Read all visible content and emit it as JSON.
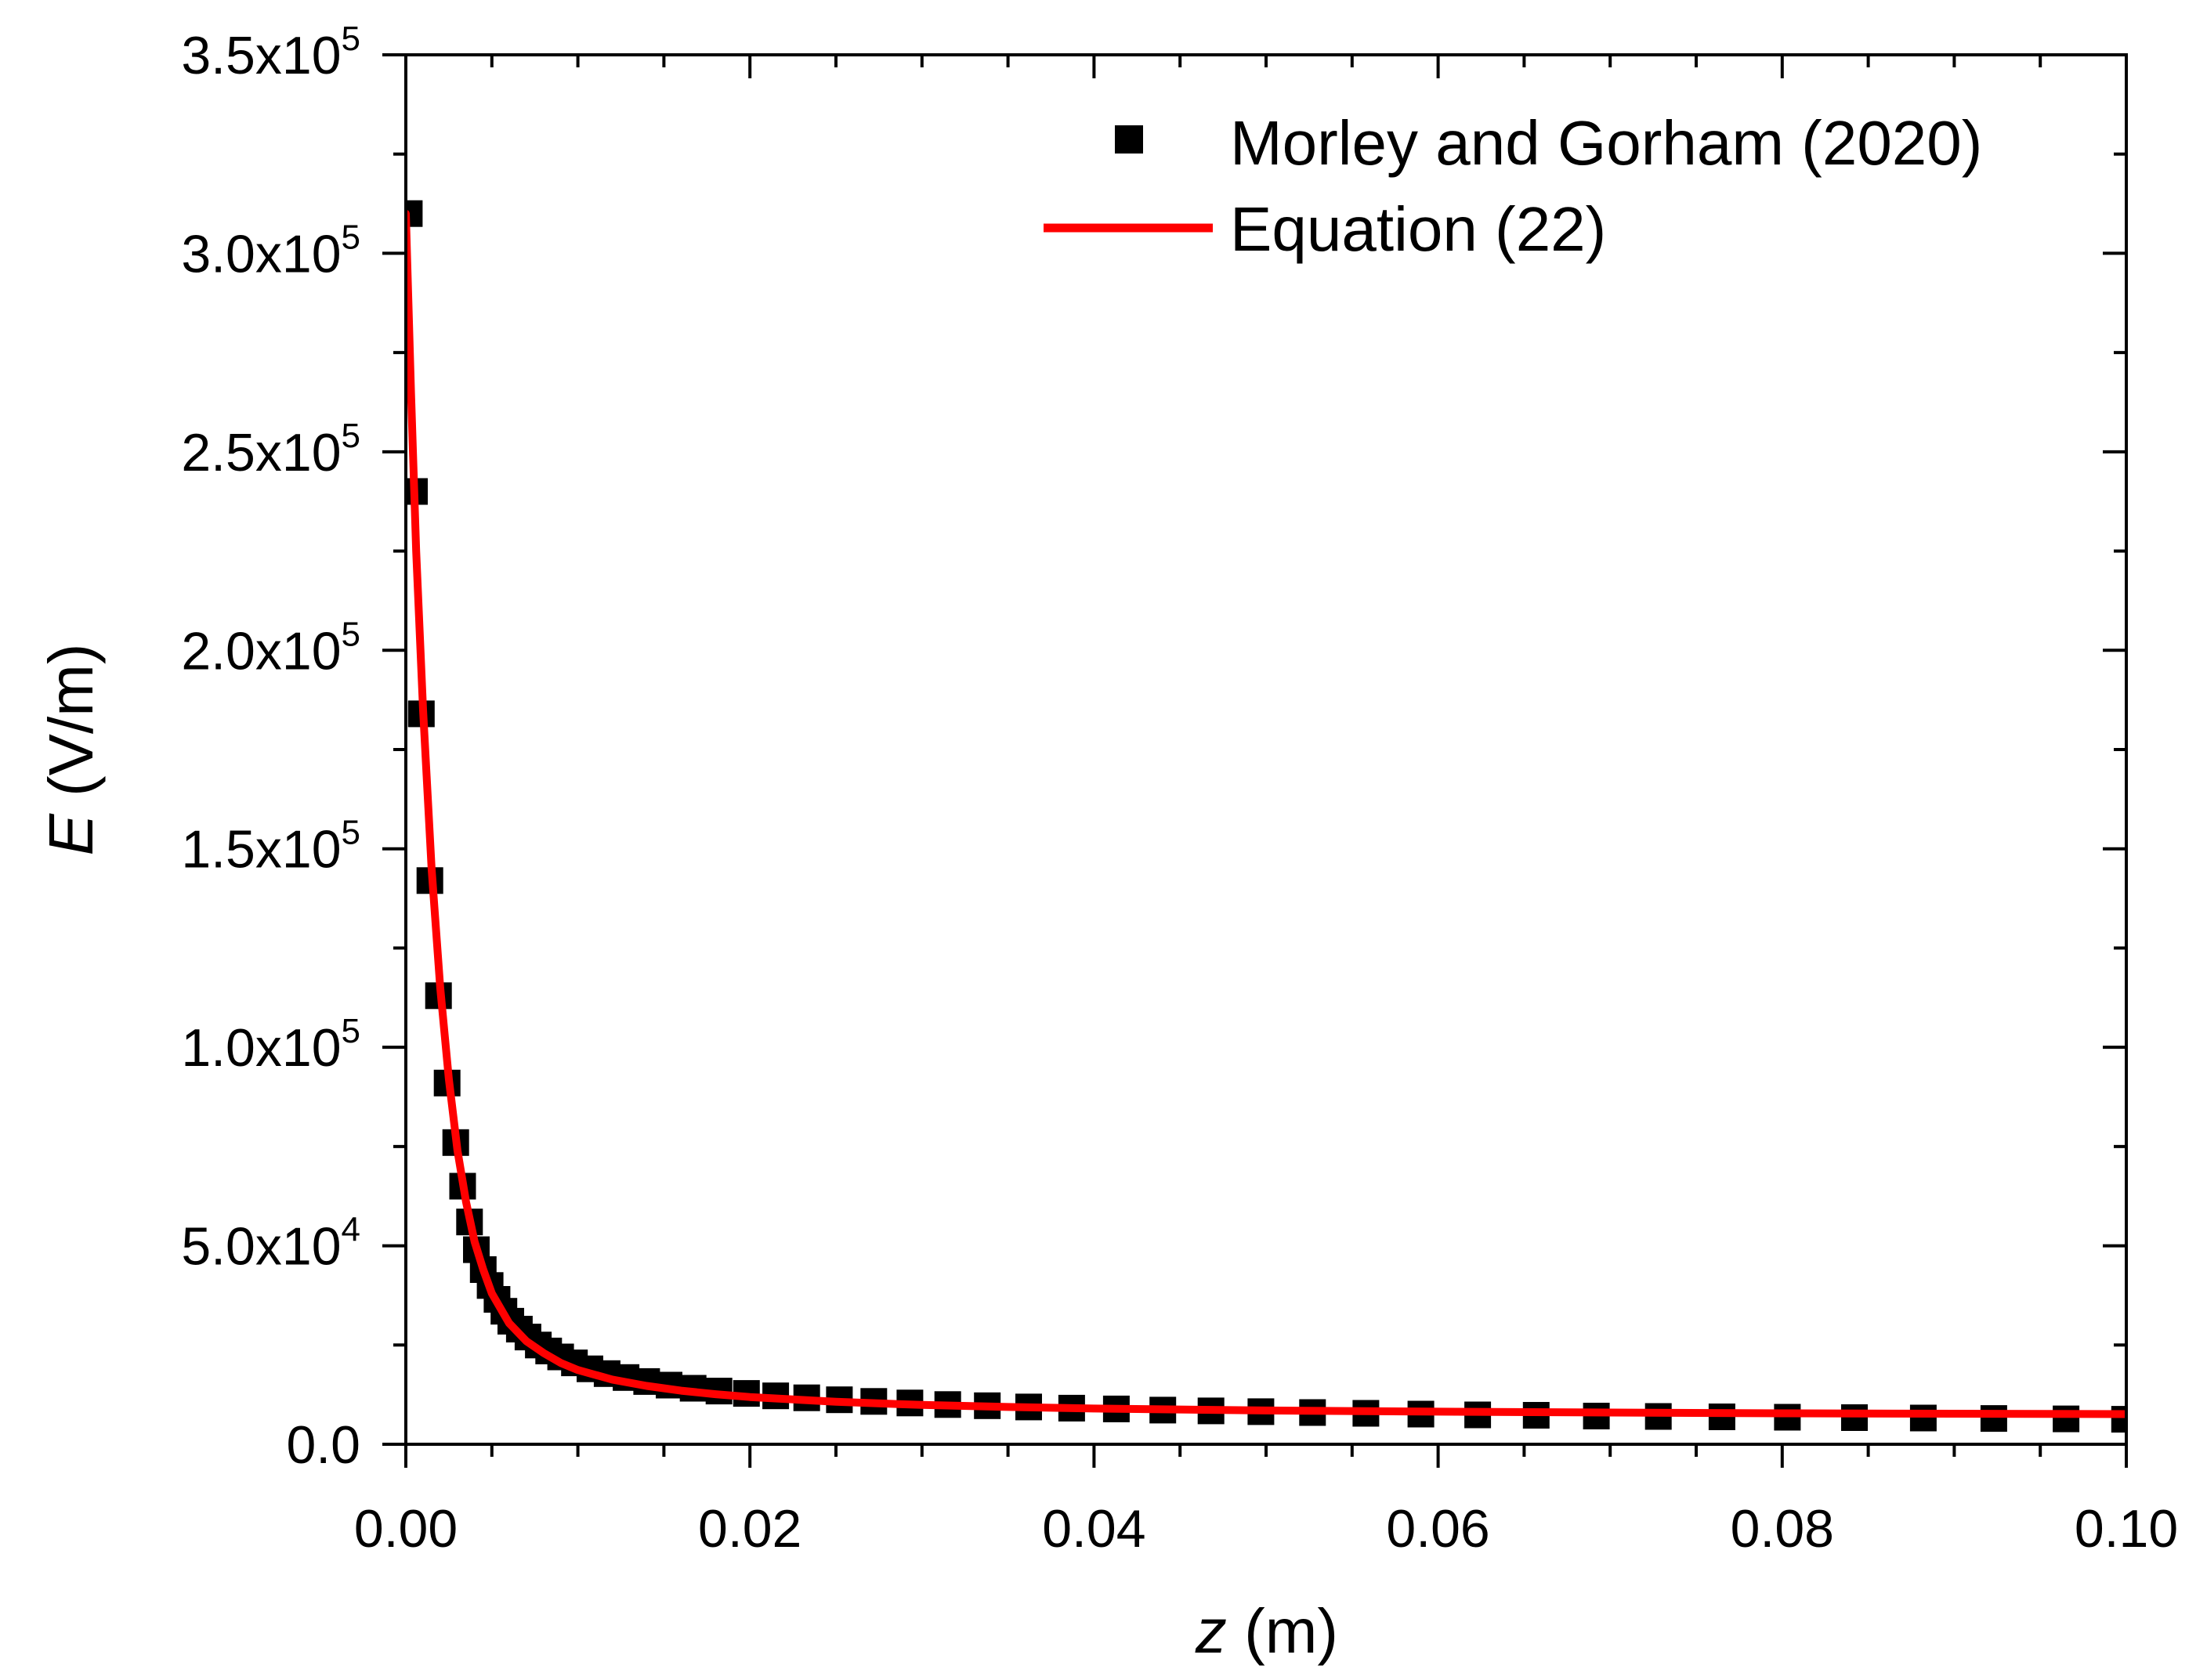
{
  "chart_data": {
    "type": "scatter",
    "xlabel_var": "z",
    "xlabel_unit": " (m)",
    "ylabel_var": "E",
    "ylabel_unit": " (V/m)",
    "xlim": [
      0,
      0.1
    ],
    "ylim": [
      0,
      350000
    ],
    "x_ticks": [
      {
        "value": 0.0,
        "label": "0.00"
      },
      {
        "value": 0.02,
        "label": "0.02"
      },
      {
        "value": 0.04,
        "label": "0.04"
      },
      {
        "value": 0.06,
        "label": "0.06"
      },
      {
        "value": 0.08,
        "label": "0.08"
      },
      {
        "value": 0.1,
        "label": "0.10"
      }
    ],
    "y_ticks": [
      {
        "value": 0,
        "mantissa": "0.0",
        "exp": ""
      },
      {
        "value": 50000,
        "mantissa": "5.0x10",
        "exp": "4"
      },
      {
        "value": 100000,
        "mantissa": "1.0x10",
        "exp": "5"
      },
      {
        "value": 150000,
        "mantissa": "1.5x10",
        "exp": "5"
      },
      {
        "value": 200000,
        "mantissa": "2.0x10",
        "exp": "5"
      },
      {
        "value": 250000,
        "mantissa": "2.5x10",
        "exp": "5"
      },
      {
        "value": 300000,
        "mantissa": "3.0x10",
        "exp": "5"
      },
      {
        "value": 350000,
        "mantissa": "3.5x10",
        "exp": "5"
      }
    ],
    "x_minor_step": 0.005,
    "y_minor_step": 25000,
    "grid": false,
    "legend_position": "top-right",
    "series": [
      {
        "name": "Morley and Gorham (2020)",
        "kind": "markers",
        "marker": "square",
        "color": "#000000",
        "x": [
          0.0002,
          0.0005,
          0.0009,
          0.0014,
          0.0019,
          0.0024,
          0.0029,
          0.0033,
          0.0037,
          0.0041,
          0.0045,
          0.0049,
          0.0053,
          0.0057,
          0.0061,
          0.0066,
          0.0071,
          0.0077,
          0.0083,
          0.009,
          0.0098,
          0.0107,
          0.0117,
          0.0128,
          0.014,
          0.0153,
          0.0167,
          0.0182,
          0.0198,
          0.0215,
          0.0233,
          0.0252,
          0.0272,
          0.0293,
          0.0315,
          0.0338,
          0.0362,
          0.0387,
          0.0413,
          0.044,
          0.0468,
          0.0497,
          0.0527,
          0.0558,
          0.059,
          0.0623,
          0.0657,
          0.0692,
          0.0728,
          0.0765,
          0.0803,
          0.0842,
          0.0882,
          0.0923,
          0.0965,
          0.0999
        ],
        "y": [
          310000,
          240000,
          184000,
          142000,
          113000,
          91000,
          76000,
          65000,
          56000,
          49000,
          44000,
          40000,
          36500,
          33500,
          31000,
          29000,
          27000,
          25000,
          23500,
          22000,
          20500,
          19000,
          17800,
          16800,
          15800,
          14900,
          14100,
          13400,
          12800,
          12200,
          11700,
          11200,
          10800,
          10400,
          10000,
          9700,
          9400,
          9100,
          8900,
          8600,
          8400,
          8200,
          8000,
          7800,
          7600,
          7400,
          7300,
          7100,
          7000,
          6900,
          6800,
          6700,
          6600,
          6500,
          6400,
          6300
        ]
      },
      {
        "name": "Equation (22)",
        "kind": "line",
        "color": "#ff0000",
        "x": [
          0,
          0.0003,
          0.0006,
          0.001,
          0.0015,
          0.002,
          0.0025,
          0.003,
          0.0035,
          0.004,
          0.0045,
          0.005,
          0.006,
          0.007,
          0.008,
          0.009,
          0.01,
          0.012,
          0.014,
          0.016,
          0.018,
          0.02,
          0.025,
          0.03,
          0.035,
          0.04,
          0.05,
          0.06,
          0.07,
          0.08,
          0.09,
          0.1
        ],
        "y": [
          310000,
          265000,
          225000,
          185000,
          145000,
          115000,
          92000,
          74000,
          61000,
          51000,
          44000,
          38000,
          30500,
          26000,
          23000,
          20500,
          18700,
          16300,
          14700,
          13500,
          12600,
          11900,
          10700,
          9900,
          9400,
          9000,
          8500,
          8200,
          8000,
          7800,
          7700,
          7600
        ]
      }
    ]
  }
}
